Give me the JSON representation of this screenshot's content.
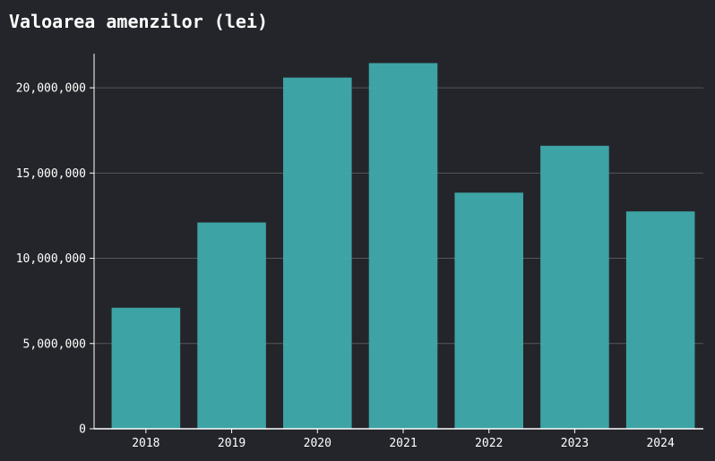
{
  "chart_data": {
    "type": "bar",
    "title": "Valoarea amenzilor (lei)",
    "xlabel": "",
    "ylabel": "",
    "categories": [
      "2018",
      "2019",
      "2020",
      "2021",
      "2022",
      "2023",
      "2024"
    ],
    "values": [
      7100000,
      12100000,
      20600000,
      21450000,
      13850000,
      16600000,
      12750000
    ],
    "yticks": [
      0,
      5000000,
      10000000,
      15000000,
      20000000
    ],
    "ytick_labels": [
      "0",
      "5,000,000",
      "10,000,000",
      "15,000,000",
      "20,000,000"
    ],
    "ylim": [
      0,
      22000000
    ],
    "grid": "horizontal",
    "legend": "none",
    "colors": {
      "bar": "#3ea9aa",
      "background": "#24252a",
      "grid": "#55565b",
      "axis": "#ffffff",
      "text": "#ffffff"
    }
  }
}
